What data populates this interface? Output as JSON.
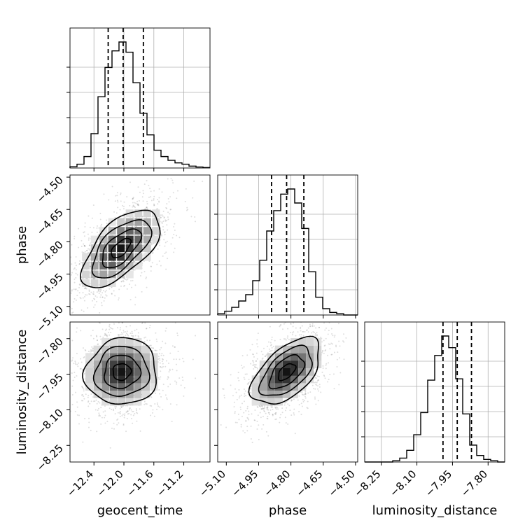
{
  "chart_data": {
    "type": "corner",
    "grid": true,
    "parameters": [
      "geocent_time",
      "phase",
      "luminosity_distance"
    ],
    "axis_labels": {
      "x": [
        "geocent_time",
        "phase",
        "luminosity_distance"
      ],
      "y": [
        "",
        "phase",
        "luminosity_distance"
      ]
    },
    "ranges": {
      "geocent_time": [
        -12.72,
        -10.85
      ],
      "phase": [
        -5.14,
        -4.49
      ],
      "luminosity_distance": [
        -8.32,
        -7.73
      ]
    },
    "ticks": {
      "geocent_time": [
        -12.4,
        -12.0,
        -11.6,
        -11.2
      ],
      "phase": [
        -5.1,
        -4.95,
        -4.8,
        -4.65,
        -4.5
      ],
      "luminosity_distance": [
        -8.25,
        -8.1,
        -7.95,
        -7.8
      ]
    },
    "tick_labels": {
      "geocent_time": [
        "−12.4",
        "−12.0",
        "−11.6",
        "−11.2"
      ],
      "phase": [
        "−5.10",
        "−4.95",
        "−4.80",
        "−4.65",
        "−4.50"
      ],
      "luminosity_distance": [
        "−8.25",
        "−8.10",
        "−7.95",
        "−7.80"
      ]
    },
    "histograms": {
      "geocent_time": {
        "bin_start": -12.72,
        "bin_width": 0.0935,
        "counts": [
          0.01,
          0.03,
          0.09,
          0.27,
          0.56,
          0.79,
          0.92,
          0.99,
          0.91,
          0.67,
          0.43,
          0.26,
          0.14,
          0.09,
          0.06,
          0.04,
          0.03,
          0.015,
          0.008,
          0.004
        ],
        "quantiles": [
          -12.21,
          -12.01,
          -11.74
        ]
      },
      "phase": {
        "bin_start": -5.14,
        "bin_width": 0.0325,
        "counts": [
          0.01,
          0.03,
          0.06,
          0.11,
          0.16,
          0.27,
          0.43,
          0.66,
          0.82,
          0.95,
          0.99,
          0.88,
          0.68,
          0.34,
          0.14,
          0.05,
          0.02,
          0.01,
          0.0,
          0.0
        ],
        "quantiles": [
          -4.89,
          -4.82,
          -4.74
        ]
      },
      "luminosity_distance": {
        "bin_start": -8.32,
        "bin_width": 0.0295,
        "counts": [
          0.0,
          0.0,
          0.0,
          0.0,
          0.01,
          0.03,
          0.09,
          0.21,
          0.38,
          0.63,
          0.82,
          0.97,
          0.88,
          0.64,
          0.37,
          0.13,
          0.05,
          0.02,
          0.01,
          0.0
        ],
        "quantiles": [
          -7.99,
          -7.93,
          -7.87
        ]
      }
    },
    "pairs": [
      {
        "x": "geocent_time",
        "y": "phase",
        "mean": [
          -12.04,
          -4.83
        ],
        "sd": [
          0.26,
          0.09
        ],
        "corr": 0.62
      },
      {
        "x": "geocent_time",
        "y": "luminosity_distance",
        "mean": [
          -12.03,
          -7.94
        ],
        "sd": [
          0.24,
          0.07
        ],
        "corr": 0.05
      },
      {
        "x": "phase",
        "y": "luminosity_distance",
        "mean": [
          -4.82,
          -7.94
        ],
        "sd": [
          0.08,
          0.07
        ],
        "corr": 0.55
      }
    ],
    "colors": {
      "hist": "#000000",
      "contour": "#000000",
      "points": "#000000",
      "grid": "#b0b0b0"
    }
  }
}
